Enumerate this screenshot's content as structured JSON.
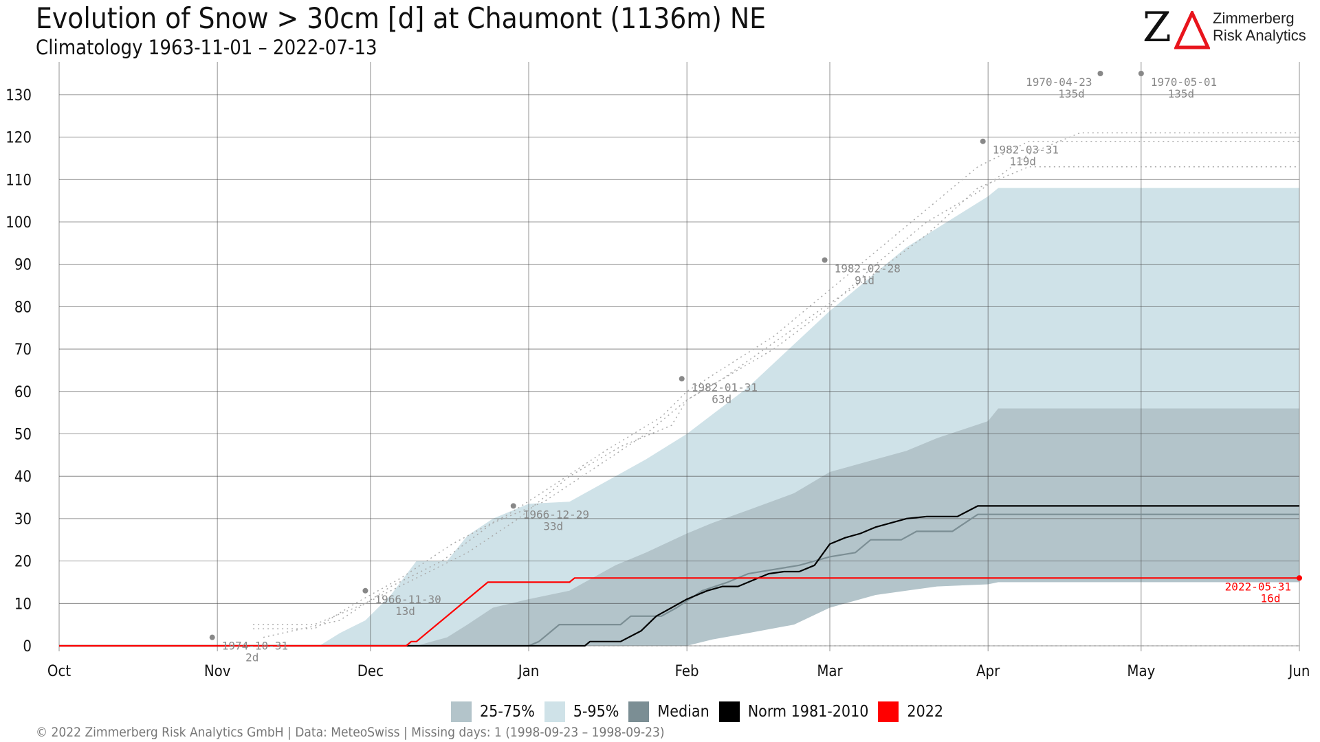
{
  "header": {
    "title": "Evolution of Snow > 30cm [d] at Chaumont (1136m) NE",
    "subtitle": "Climatology 1963-11-01 – 2022-07-13"
  },
  "logo": {
    "mark": "Z",
    "line1": "Zimmerberg",
    "line2": "Risk Analytics",
    "accent_color": "#e8141c"
  },
  "footer": {
    "text": "©  2022 Zimmerberg Risk Analytics GmbH | Data: MeteoSwiss | Missing days: 1 (1998-09-23 – 1998-09-23)"
  },
  "legend": [
    {
      "label": "25-75%",
      "color": "#b3c4ca"
    },
    {
      "label": "5-95%",
      "color": "#cfe2e8"
    },
    {
      "label": "Median",
      "color": "#7b8e94"
    },
    {
      "label": "Norm 1981-2010",
      "color": "#000000"
    },
    {
      "label": "2022",
      "color": "#ff0000"
    }
  ],
  "chart_data": {
    "type": "area",
    "xlabel": "",
    "ylabel": "",
    "x_unit": "days since Oct 1",
    "xlim": [
      0,
      243
    ],
    "ylim": [
      0,
      135
    ],
    "y_ticks": [
      0,
      10,
      20,
      30,
      40,
      50,
      60,
      70,
      80,
      90,
      100,
      110,
      120,
      130
    ],
    "x_ticks": [
      {
        "label": "Oct",
        "day": 0
      },
      {
        "label": "Nov",
        "day": 31
      },
      {
        "label": "Dec",
        "day": 61
      },
      {
        "label": "Jan",
        "day": 92
      },
      {
        "label": "Feb",
        "day": 123
      },
      {
        "label": "Mar",
        "day": 151
      },
      {
        "label": "Apr",
        "day": 182
      },
      {
        "label": "May",
        "day": 212
      },
      {
        "label": "Jun",
        "day": 243
      }
    ],
    "grid": true,
    "legend_position": "bottom",
    "colors": {
      "band_5_95": "#cfe2e8",
      "band_25_75": "#b3c4ca",
      "median": "#7b8e94",
      "norm": "#000000",
      "current": "#ff0000",
      "record": "#888888"
    },
    "band_5_95": {
      "x": [
        0,
        51,
        55,
        60,
        65,
        70,
        76,
        80,
        85,
        92,
        100,
        109,
        115,
        123,
        135,
        151,
        166,
        182,
        184,
        243
      ],
      "low": [
        0,
        0,
        0,
        0,
        0,
        0,
        0,
        0,
        0,
        0,
        0,
        0,
        0,
        0.5,
        4,
        11,
        13.5,
        15,
        16,
        16
      ],
      "high": [
        0,
        0,
        3,
        6,
        12,
        20,
        20,
        26,
        30,
        33.5,
        34,
        40,
        44,
        50,
        61,
        79,
        94,
        106,
        108,
        108
      ]
    },
    "band_25_75": {
      "x": [
        0,
        70,
        76,
        80,
        85,
        92,
        100,
        109,
        115,
        123,
        128,
        135,
        144,
        151,
        160,
        166,
        172,
        182,
        184,
        243
      ],
      "low": [
        0,
        0,
        0,
        0,
        0,
        0,
        0,
        0,
        0,
        0,
        1.5,
        3,
        5,
        9,
        12,
        13,
        14,
        14.5,
        15,
        15
      ],
      "high": [
        0,
        0,
        2,
        5,
        9,
        11,
        13,
        19,
        22,
        26.5,
        29,
        32,
        36,
        41,
        44,
        46,
        49,
        53,
        56,
        56
      ]
    },
    "series": [
      {
        "name": "Median",
        "x": [
          0,
          92,
          94,
          98,
          110,
          112,
          118,
          121,
          126,
          131,
          135,
          140,
          145,
          151,
          156,
          159,
          165,
          168,
          175,
          180,
          243
        ],
        "y": [
          0,
          0,
          1,
          5,
          5,
          7,
          7,
          9,
          13,
          15,
          17,
          18,
          19,
          21,
          22,
          25,
          25,
          27,
          27,
          31,
          31
        ]
      },
      {
        "name": "Norm 1981-2010",
        "x": [
          0,
          103,
          104,
          110,
          114,
          117,
          120,
          123,
          127,
          130,
          133,
          136,
          139,
          142,
          145,
          148,
          151,
          154,
          157,
          160,
          163,
          166,
          170,
          176,
          180,
          243
        ],
        "y": [
          0,
          0,
          1,
          1,
          3.5,
          7,
          9,
          11,
          13,
          14,
          14,
          15.5,
          17,
          17.5,
          17.5,
          19,
          24,
          25.5,
          26.5,
          28,
          29,
          30,
          30.5,
          30.5,
          33,
          33
        ]
      },
      {
        "name": "2022",
        "x": [
          0,
          68,
          69,
          70,
          84,
          100,
          101,
          243
        ],
        "y": [
          0,
          0,
          1,
          1,
          15,
          15,
          16,
          16
        ]
      }
    ],
    "record_lines": [
      {
        "x": [
          38,
          50,
          60,
          70,
          80,
          90,
          100,
          110,
          120,
          123,
          130,
          150,
          160,
          170,
          180,
          190,
          243
        ],
        "y": [
          5,
          5,
          10,
          16,
          22,
          30,
          40,
          47,
          52,
          58,
          63,
          80,
          88,
          97,
          108,
          113,
          113
        ]
      },
      {
        "x": [
          38,
          50,
          58,
          67,
          77,
          88,
          97,
          107,
          118,
          123,
          140,
          150,
          160,
          170,
          180,
          190,
          243
        ],
        "y": [
          4,
          4,
          10,
          16,
          24,
          31,
          38,
          46,
          54,
          60,
          73,
          83,
          93,
          103,
          113,
          119,
          119
        ]
      },
      {
        "x": [
          40,
          55,
          65,
          75,
          85,
          95,
          105,
          115,
          123,
          140,
          150,
          160,
          170,
          180,
          190,
          200,
          243
        ],
        "y": [
          2,
          6,
          14,
          20,
          29,
          34,
          42,
          50,
          58,
          70,
          79,
          90,
          100,
          107,
          116,
          121,
          121
        ]
      }
    ],
    "annotations": [
      {
        "date": "1974-10-31",
        "value_label": "2d",
        "x": 30,
        "y": 2
      },
      {
        "date": "1966-11-30",
        "value_label": "13d",
        "x": 60,
        "y": 13
      },
      {
        "date": "1966-12-29",
        "value_label": "33d",
        "x": 89,
        "y": 33
      },
      {
        "date": "1982-01-31",
        "value_label": "63d",
        "x": 122,
        "y": 63
      },
      {
        "date": "1982-02-28",
        "value_label": "91d",
        "x": 150,
        "y": 91
      },
      {
        "date": "1982-03-31",
        "value_label": "119d",
        "x": 181,
        "y": 119
      },
      {
        "date": "1970-04-23",
        "value_label": "135d",
        "x": 204,
        "y": 135,
        "align": "left"
      },
      {
        "date": "1970-05-01",
        "value_label": "135d",
        "x": 212,
        "y": 135
      },
      {
        "date": "2022-05-31",
        "value_label": "16d",
        "x": 243,
        "y": 16,
        "align": "left",
        "color": "#ff0000"
      }
    ]
  }
}
